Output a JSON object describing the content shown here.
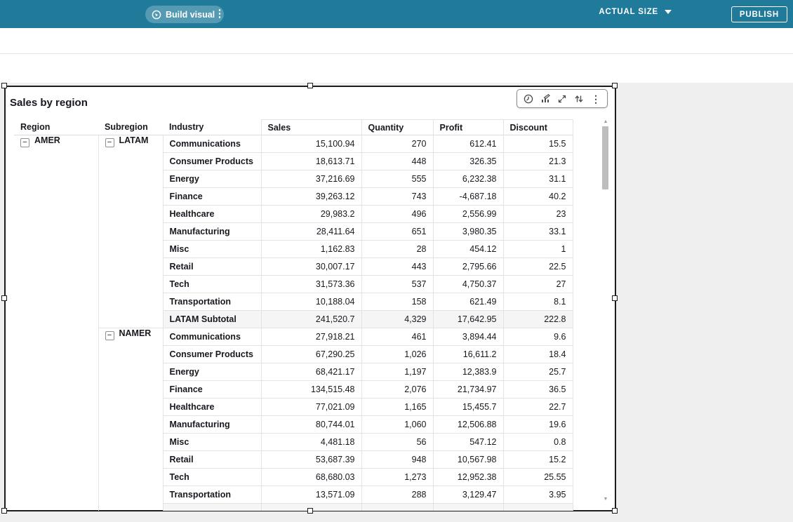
{
  "top_bar": {
    "build_visual_label": "Build visual",
    "more_options": "⋮",
    "size_selector_value": "ACTUAL SIZE",
    "publish_label": "PUBLISH"
  },
  "visual": {
    "title": "Sales by region",
    "toolbar": {
      "icons": [
        "schedule-icon",
        "edit-visual-icon",
        "maximize-icon",
        "swap-icon",
        "menu-icon"
      ],
      "menu_glyph": "⋮"
    },
    "table": {
      "row_headers": {
        "region": "Region",
        "subregion": "Subregion",
        "industry": "Industry"
      },
      "measure_headers": [
        "Sales",
        "Quantity",
        "Profit",
        "Discount"
      ],
      "collapse_glyph": "−",
      "groups": [
        {
          "region": "AMER",
          "subregions": [
            {
              "name": "LATAM",
              "rows": [
                {
                  "industry": "Communications",
                  "sales": "15,100.94",
                  "quantity": "270",
                  "profit": "612.41",
                  "discount": "15.5"
                },
                {
                  "industry": "Consumer Products",
                  "sales": "18,613.71",
                  "quantity": "448",
                  "profit": "326.35",
                  "discount": "21.3"
                },
                {
                  "industry": "Energy",
                  "sales": "37,216.69",
                  "quantity": "555",
                  "profit": "6,232.38",
                  "discount": "31.1"
                },
                {
                  "industry": "Finance",
                  "sales": "39,263.12",
                  "quantity": "743",
                  "profit": "-4,687.18",
                  "discount": "40.2"
                },
                {
                  "industry": "Healthcare",
                  "sales": "29,983.2",
                  "quantity": "496",
                  "profit": "2,556.99",
                  "discount": "23"
                },
                {
                  "industry": "Manufacturing",
                  "sales": "28,411.64",
                  "quantity": "651",
                  "profit": "3,980.35",
                  "discount": "33.1"
                },
                {
                  "industry": "Misc",
                  "sales": "1,162.83",
                  "quantity": "28",
                  "profit": "454.12",
                  "discount": "1"
                },
                {
                  "industry": "Retail",
                  "sales": "30,007.17",
                  "quantity": "443",
                  "profit": "2,795.66",
                  "discount": "22.5"
                },
                {
                  "industry": "Tech",
                  "sales": "31,573.36",
                  "quantity": "537",
                  "profit": "4,750.37",
                  "discount": "27"
                },
                {
                  "industry": "Transportation",
                  "sales": "10,188.04",
                  "quantity": "158",
                  "profit": "621.49",
                  "discount": "8.1"
                }
              ],
              "subtotal": {
                "industry": "LATAM Subtotal",
                "sales": "241,520.7",
                "quantity": "4,329",
                "profit": "17,642.95",
                "discount": "222.8"
              }
            },
            {
              "name": "NAMER",
              "rows": [
                {
                  "industry": "Communications",
                  "sales": "27,918.21",
                  "quantity": "461",
                  "profit": "3,894.44",
                  "discount": "9.6"
                },
                {
                  "industry": "Consumer Products",
                  "sales": "67,290.25",
                  "quantity": "1,026",
                  "profit": "16,611.2",
                  "discount": "18.4"
                },
                {
                  "industry": "Energy",
                  "sales": "68,421.17",
                  "quantity": "1,197",
                  "profit": "12,383.9",
                  "discount": "25.7"
                },
                {
                  "industry": "Finance",
                  "sales": "134,515.48",
                  "quantity": "2,076",
                  "profit": "21,734.97",
                  "discount": "36.5"
                },
                {
                  "industry": "Healthcare",
                  "sales": "77,021.09",
                  "quantity": "1,165",
                  "profit": "15,455.7",
                  "discount": "22.7"
                },
                {
                  "industry": "Manufacturing",
                  "sales": "80,744.01",
                  "quantity": "1,060",
                  "profit": "12,506.88",
                  "discount": "19.6"
                },
                {
                  "industry": "Misc",
                  "sales": "4,481.18",
                  "quantity": "56",
                  "profit": "547.12",
                  "discount": "0.8"
                },
                {
                  "industry": "Retail",
                  "sales": "53,687.39",
                  "quantity": "948",
                  "profit": "10,567.98",
                  "discount": "15.2"
                },
                {
                  "industry": "Tech",
                  "sales": "68,680.03",
                  "quantity": "1,273",
                  "profit": "12,952.38",
                  "discount": "25.55"
                },
                {
                  "industry": "Transportation",
                  "sales": "13,571.09",
                  "quantity": "288",
                  "profit": "3,129.47",
                  "discount": "3.95"
                }
              ],
              "subtotal_clipped": true
            }
          ]
        }
      ]
    }
  },
  "colors": {
    "topbar": "#207b9b",
    "canvas": "#efefef",
    "grid_line": "#e3e3e3",
    "subtotal_bg": "#f5f5f5",
    "selection_border": "#1c1c1c"
  }
}
